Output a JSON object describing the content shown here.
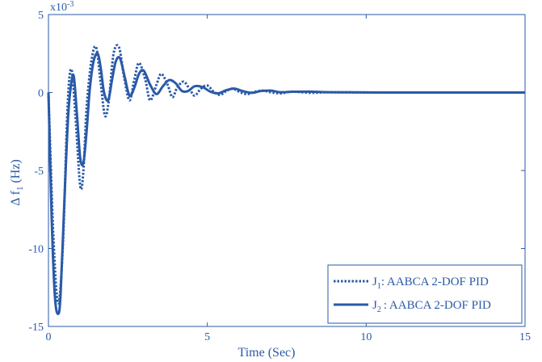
{
  "chart_data": {
    "type": "line",
    "xlabel": "Time (Sec)",
    "ylabel_main": "Δ f",
    "ylabel_sub": "1",
    "ylabel_unit": "(Hz)",
    "exponent_label": "x10",
    "exponent_power": "-3",
    "xlim": [
      0,
      15
    ],
    "ylim": [
      -15,
      5
    ],
    "xticks": [
      0,
      5,
      10,
      15
    ],
    "yticks": [
      -15,
      -10,
      -5,
      0,
      5
    ],
    "xtick_labels": [
      "0",
      "5",
      "10",
      "15"
    ],
    "ytick_labels": [
      "-15",
      "-10",
      "-5",
      "0",
      "5"
    ],
    "grid": false,
    "legend_position": "bottom-right",
    "line_color": "#2a5aa8",
    "series": [
      {
        "name": "J1: AABCA 2-DOF PID",
        "legend_main": "J",
        "legend_sub": "1",
        "legend_rest": ": AABCA 2-DOF PID",
        "style": "dotted",
        "x": [
          0,
          0.15,
          0.3,
          0.45,
          0.6,
          0.72,
          0.85,
          1.0,
          1.1,
          1.2,
          1.35,
          1.5,
          1.65,
          1.78,
          1.9,
          2.05,
          2.22,
          2.38,
          2.55,
          2.7,
          2.85,
          3.05,
          3.2,
          3.4,
          3.55,
          3.75,
          3.9,
          4.05,
          4.25,
          4.45,
          4.6,
          4.8,
          5.0,
          5.2,
          5.4,
          5.6,
          5.8,
          6.0,
          6.25,
          6.5,
          6.75,
          7.0,
          7.3,
          7.6,
          7.9,
          8.3,
          8.8,
          9.5,
          10.5,
          12,
          13.5,
          15
        ],
        "y": [
          0,
          -9.0,
          -13.5,
          -10.0,
          -1.0,
          1.5,
          -1.5,
          -6.0,
          -5.0,
          -1.0,
          2.0,
          2.9,
          0.5,
          -1.5,
          -0.5,
          2.5,
          2.9,
          1.0,
          -0.5,
          0.8,
          1.9,
          0.8,
          -0.5,
          0.5,
          1.2,
          0.5,
          -0.3,
          0.3,
          0.7,
          0.2,
          -0.2,
          0.25,
          0.45,
          0.05,
          -0.15,
          0.1,
          0.25,
          0.05,
          -0.1,
          0.05,
          0.12,
          0.02,
          -0.05,
          0.05,
          0.03,
          -0.02,
          0.02,
          0.01,
          0,
          0,
          0,
          0
        ]
      },
      {
        "name": "J2: AABCA 2-DOF PID",
        "legend_main": "J",
        "legend_sub": "2",
        "legend_rest": ": AABCA 2-DOF PID",
        "style": "solid",
        "x": [
          0,
          0.1,
          0.2,
          0.3,
          0.38,
          0.5,
          0.62,
          0.72,
          0.8,
          0.9,
          1.0,
          1.1,
          1.2,
          1.3,
          1.42,
          1.55,
          1.65,
          1.75,
          1.88,
          2.0,
          2.12,
          2.25,
          2.4,
          2.55,
          2.7,
          2.85,
          3.0,
          3.2,
          3.4,
          3.6,
          3.8,
          4.0,
          4.2,
          4.4,
          4.6,
          4.85,
          5.1,
          5.35,
          5.6,
          5.85,
          6.1,
          6.4,
          6.7,
          7.0,
          7.3,
          7.7,
          8.2,
          8.8,
          9.5,
          10.5,
          12,
          13.5,
          15
        ],
        "y": [
          0,
          -8.0,
          -13.0,
          -14.2,
          -13.0,
          -7.0,
          -1.5,
          0.6,
          1.0,
          -1.5,
          -4.2,
          -4.5,
          -2.5,
          0.2,
          2.0,
          2.5,
          1.5,
          0.0,
          -0.5,
          0.8,
          2.0,
          2.2,
          1.0,
          -0.2,
          0.3,
          1.2,
          1.4,
          0.5,
          -0.1,
          0.4,
          0.8,
          0.6,
          0.1,
          0.1,
          0.4,
          0.35,
          0.05,
          -0.05,
          0.15,
          0.25,
          0.1,
          -0.02,
          0.1,
          0.12,
          0.02,
          0.05,
          0.06,
          0.02,
          0.01,
          0,
          0,
          0,
          0
        ]
      }
    ]
  }
}
